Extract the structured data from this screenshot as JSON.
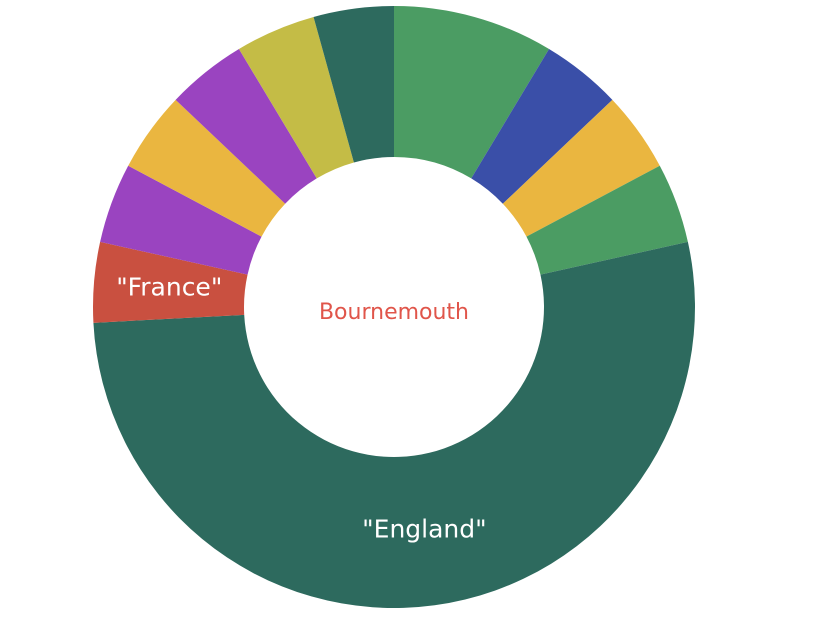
{
  "chart_data": {
    "type": "pie",
    "variant": "donut",
    "center_label": "Bournemouth",
    "center_label_color": "#e0554a",
    "slices": [
      {
        "value": 9,
        "label": "",
        "color": "#4b9c63"
      },
      {
        "value": 4.5,
        "label": "",
        "color": "#3a4fa8"
      },
      {
        "value": 4.5,
        "label": "",
        "color": "#eab640"
      },
      {
        "value": 4.5,
        "label": "",
        "color": "#4b9c63"
      },
      {
        "value": 55,
        "label": "\"England\"",
        "color": "#2d6a5e"
      },
      {
        "value": 4.5,
        "label": "\"France\"",
        "color": "#c95040"
      },
      {
        "value": 4.5,
        "label": "",
        "color": "#9a44c0"
      },
      {
        "value": 4.5,
        "label": "",
        "color": "#eab640"
      },
      {
        "value": 4.5,
        "label": "",
        "color": "#9a44c0"
      },
      {
        "value": 4.5,
        "label": "",
        "color": "#c4bc46"
      },
      {
        "value": 4.5,
        "label": "",
        "color": "#2d6a5e"
      }
    ]
  }
}
